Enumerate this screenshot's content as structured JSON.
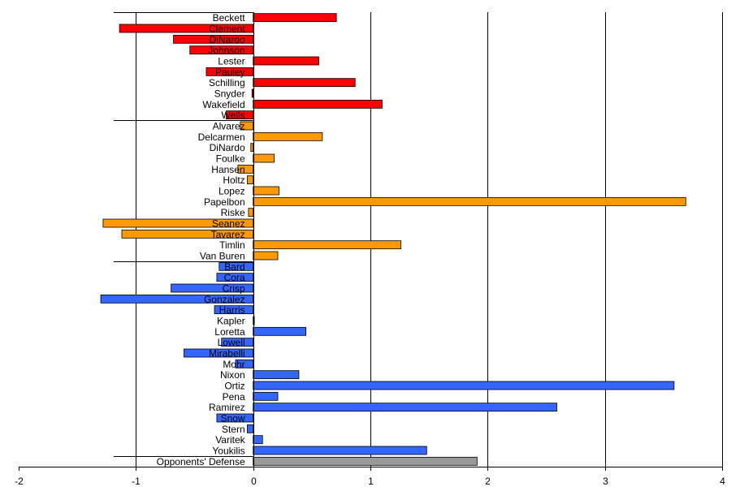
{
  "chart_data": {
    "type": "bar",
    "orientation": "horizontal",
    "xlim": [
      -2,
      4
    ],
    "x_ticks": [
      -2,
      -1,
      0,
      1,
      2,
      3,
      4
    ],
    "grid": "vertical",
    "colors": {
      "red": "#ff0000",
      "orange": "#ff9900",
      "blue": "#3366ff",
      "gray": "#999999"
    },
    "categories": [
      "Beckett",
      "Clement",
      "DiNardo",
      "Johnson",
      "Lester",
      "Pauley",
      "Schilling",
      "Snyder",
      "Wakefield",
      "Wells",
      "Alvarez",
      "Delcarmen",
      "DiNardo",
      "Foulke",
      "Hansen",
      "Holtz",
      "Lopez",
      "Papelbon",
      "Riske",
      "Seanez",
      "Tavarez",
      "Timlin",
      "Van Buren",
      "Bard",
      "Cora",
      "Crisp",
      "Gonzalez",
      "Harris",
      "Kapler",
      "Loretta",
      "Lowell",
      "Mirabelli",
      "Mohr",
      "Nixon",
      "Ortiz",
      "Pena",
      "Ramirez",
      "Snow",
      "Stern",
      "Varitek",
      "Youkilis",
      "Opponents' Defense"
    ],
    "values": [
      0.71,
      -1.14,
      -0.68,
      -0.54,
      0.56,
      -0.4,
      0.87,
      -0.01,
      1.1,
      -0.23,
      -0.11,
      0.59,
      -0.02,
      0.18,
      -0.13,
      -0.05,
      0.22,
      3.69,
      -0.04,
      -1.28,
      -1.12,
      1.26,
      0.21,
      -0.29,
      -0.31,
      -0.7,
      -1.3,
      -0.33,
      0.01,
      0.45,
      -0.27,
      -0.59,
      -0.15,
      0.39,
      3.59,
      0.21,
      2.59,
      -0.31,
      -0.05,
      0.08,
      1.48,
      1.91
    ],
    "bar_colors": [
      "red",
      "red",
      "red",
      "red",
      "red",
      "red",
      "red",
      "red",
      "red",
      "red",
      "orange",
      "orange",
      "orange",
      "orange",
      "orange",
      "orange",
      "orange",
      "orange",
      "orange",
      "orange",
      "orange",
      "orange",
      "orange",
      "blue",
      "blue",
      "blue",
      "blue",
      "blue",
      "blue",
      "blue",
      "blue",
      "blue",
      "blue",
      "blue",
      "blue",
      "blue",
      "blue",
      "blue",
      "blue",
      "blue",
      "blue",
      "gray"
    ],
    "group_starts": [
      0,
      10,
      23,
      41
    ]
  }
}
